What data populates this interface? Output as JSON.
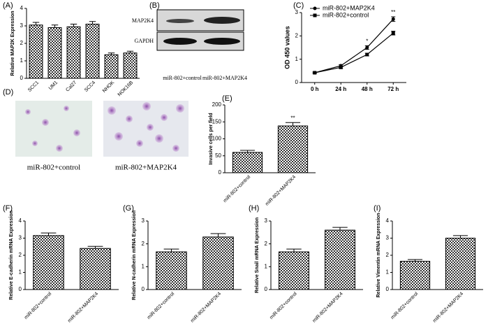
{
  "chart_data": [
    {
      "type": "bar",
      "panel": "(A)",
      "ylabel": "Relative MAP2K Expression",
      "categories": [
        "SCC1",
        "UM1",
        "Cal27",
        "SCC4",
        "NHOK",
        "NOK16B"
      ],
      "values": [
        3.05,
        2.9,
        2.95,
        3.1,
        1.35,
        1.45
      ],
      "errors": [
        0.15,
        0.15,
        0.15,
        0.15,
        0.1,
        0.1
      ],
      "ylim": [
        0,
        4
      ],
      "yticks": [
        0,
        1,
        2,
        3,
        4
      ]
    },
    {
      "type": "line",
      "panel": "(C)",
      "ylabel": "OD 450 values",
      "categories": [
        "0 h",
        "24 h",
        "48 h",
        "72 h"
      ],
      "series": [
        {
          "name": "miR-802+MAP2K4",
          "marker": "circle",
          "color": "#000000",
          "values": [
            0.42,
            0.72,
            1.5,
            2.72
          ],
          "errors": [
            0.03,
            0.05,
            0.08,
            0.1
          ]
        },
        {
          "name": "miR-802+control",
          "marker": "square",
          "color": "#000000",
          "values": [
            0.42,
            0.65,
            1.2,
            2.12
          ],
          "errors": [
            0.03,
            0.05,
            0.06,
            0.08
          ]
        }
      ],
      "annotations": [
        {
          "text": "*",
          "at": "48 h"
        },
        {
          "text": "**",
          "at": "72 h"
        }
      ],
      "ylim": [
        0,
        3
      ],
      "yticks": [
        0,
        1,
        2,
        3
      ]
    },
    {
      "type": "bar",
      "panel": "(E)",
      "ylabel": "Invasive cells per field",
      "categories": [
        "miR-802+control",
        "miR-802+MAP2K4"
      ],
      "values": [
        60,
        138
      ],
      "errors": [
        6,
        10
      ],
      "annotations": [
        {
          "text": "**",
          "at": "miR-802+MAP2K4"
        }
      ],
      "ylim": [
        0,
        200
      ],
      "yticks": [
        0,
        50,
        100,
        150,
        200
      ]
    },
    {
      "type": "bar",
      "panel": "(F)",
      "ylabel": "Relative E-cadherin mRNA Expression",
      "categories": [
        "miR-802+control",
        "miR-802+MAP2K4"
      ],
      "values": [
        3.15,
        2.4
      ],
      "errors": [
        0.15,
        0.12
      ],
      "ylim": [
        0,
        4
      ],
      "yticks": [
        0,
        1,
        2,
        3,
        4
      ]
    },
    {
      "type": "bar",
      "panel": "(G)",
      "ylabel": "Relative N-cadherin mRNA Expression",
      "categories": [
        "miR-802+control",
        "miR-802+MAP2K4"
      ],
      "values": [
        1.65,
        2.3
      ],
      "errors": [
        0.12,
        0.15
      ],
      "ylim": [
        0,
        3
      ],
      "yticks": [
        0,
        1,
        2,
        3
      ]
    },
    {
      "type": "bar",
      "panel": "(H)",
      "ylabel": "Relative Snail mRNA Expression",
      "categories": [
        "miR-802+control",
        "miR-802+MAP2K4"
      ],
      "values": [
        1.65,
        2.6
      ],
      "errors": [
        0.12,
        0.12
      ],
      "ylim": [
        0,
        3
      ],
      "yticks": [
        0,
        1,
        2,
        3
      ]
    },
    {
      "type": "bar",
      "panel": "(I)",
      "ylabel": "Relative Vimentin mRNA Expression",
      "categories": [
        "miR-802+control",
        "miR-802+MAP2K4"
      ],
      "values": [
        1.65,
        3.0
      ],
      "errors": [
        0.1,
        0.15
      ],
      "ylim": [
        0,
        4
      ],
      "yticks": [
        0,
        1,
        2,
        3,
        4
      ]
    }
  ],
  "blot": {
    "panel": "(B)",
    "rows": [
      "MAP2K4",
      "GAPDH"
    ],
    "lanes": [
      "miR-802+control",
      "miR-802+MAP2K4"
    ]
  },
  "micrographs": {
    "panel": "(D)",
    "captions": [
      "miR-802+control",
      "miR-802+MAP2K4"
    ]
  }
}
